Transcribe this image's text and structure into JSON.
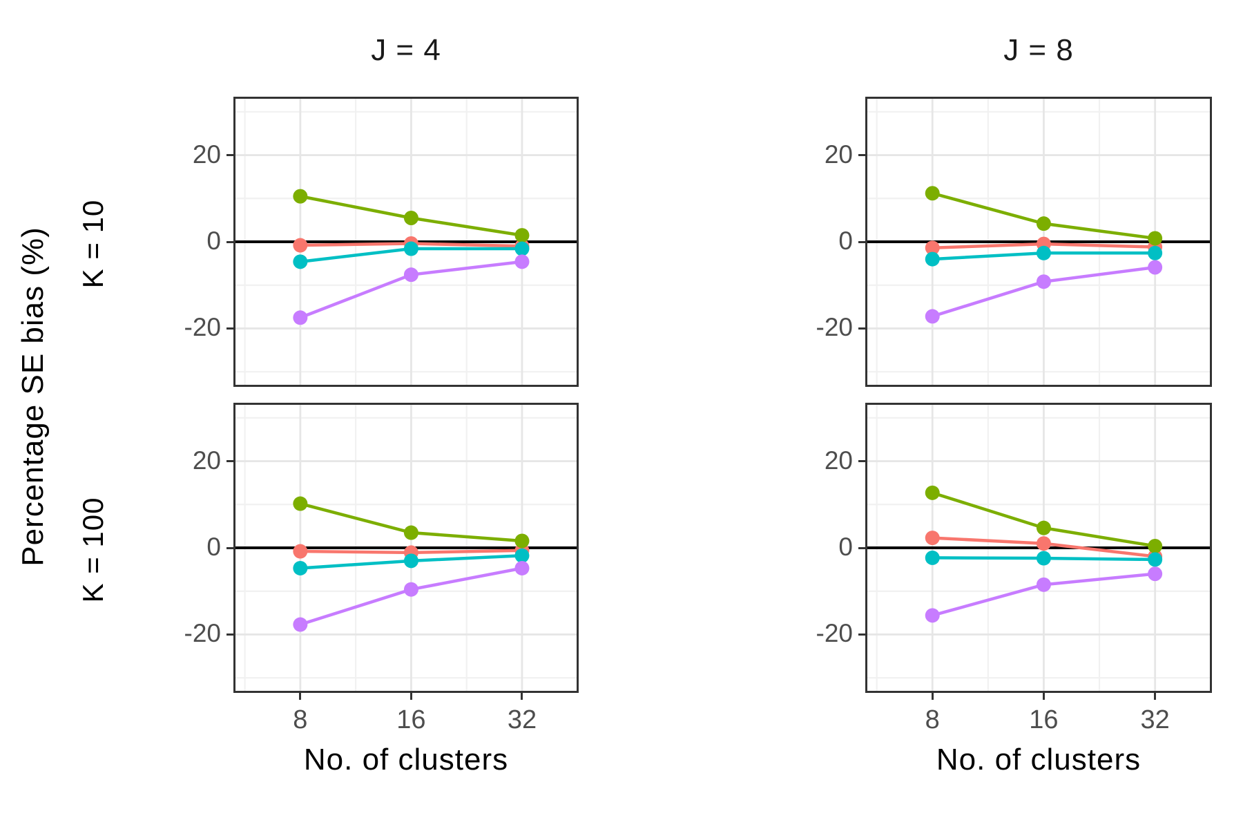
{
  "figure": {
    "ylabel": "Percentage SE bias (%)",
    "xlabel": "No. of clusters",
    "col_facets": [
      "J = 4",
      "J = 8"
    ],
    "row_facets": [
      "K = 10",
      "K = 100"
    ]
  },
  "chart_data": {
    "type": "line",
    "title": "",
    "xlabel": "No. of clusters",
    "ylabel": "Percentage SE bias (%)",
    "x": [
      8,
      16,
      32
    ],
    "x_scale": "log2-equally-spaced",
    "ylim": [
      -33,
      33
    ],
    "y_ticks": [
      20,
      0,
      -20
    ],
    "y_minor_gridlines": [
      30,
      10,
      -10,
      -30
    ],
    "grid": "major and minor, light gray, on white panel",
    "legend": "none",
    "reference_line_y": 0,
    "facet_columns": [
      "J = 4",
      "J = 8"
    ],
    "facet_rows": [
      "K = 10",
      "K = 100"
    ],
    "series_colors": {
      "red": "#F8766D",
      "green": "#7CAE00",
      "teal": "#00BFC4",
      "purple": "#C77CFF"
    },
    "panels": [
      {
        "row": "K = 10",
        "col": "J = 4",
        "series": [
          {
            "name": "red",
            "color": "#F8766D",
            "values": [
              -0.8,
              -0.4,
              -1.0
            ]
          },
          {
            "name": "green",
            "color": "#7CAE00",
            "values": [
              10.5,
              5.5,
              1.5
            ]
          },
          {
            "name": "teal",
            "color": "#00BFC4",
            "values": [
              -4.6,
              -1.6,
              -1.6
            ]
          },
          {
            "name": "purple",
            "color": "#C77CFF",
            "values": [
              -17.5,
              -7.6,
              -4.6
            ]
          }
        ]
      },
      {
        "row": "K = 10",
        "col": "J = 8",
        "series": [
          {
            "name": "red",
            "color": "#F8766D",
            "values": [
              -1.4,
              -0.5,
              -1.2
            ]
          },
          {
            "name": "green",
            "color": "#7CAE00",
            "values": [
              11.2,
              4.2,
              0.8
            ]
          },
          {
            "name": "teal",
            "color": "#00BFC4",
            "values": [
              -4.0,
              -2.6,
              -2.6
            ]
          },
          {
            "name": "purple",
            "color": "#C77CFF",
            "values": [
              -17.2,
              -9.2,
              -5.9
            ]
          }
        ]
      },
      {
        "row": "K = 100",
        "col": "J = 4",
        "series": [
          {
            "name": "red",
            "color": "#F8766D",
            "values": [
              -0.8,
              -1.1,
              -0.6
            ]
          },
          {
            "name": "green",
            "color": "#7CAE00",
            "values": [
              10.2,
              3.5,
              1.6
            ]
          },
          {
            "name": "teal",
            "color": "#00BFC4",
            "values": [
              -4.7,
              -3.0,
              -1.8
            ]
          },
          {
            "name": "purple",
            "color": "#C77CFF",
            "values": [
              -17.7,
              -9.6,
              -4.7
            ]
          }
        ]
      },
      {
        "row": "K = 100",
        "col": "J = 8",
        "series": [
          {
            "name": "red",
            "color": "#F8766D",
            "values": [
              2.3,
              1.0,
              -2.0
            ]
          },
          {
            "name": "green",
            "color": "#7CAE00",
            "values": [
              12.7,
              4.6,
              0.4
            ]
          },
          {
            "name": "teal",
            "color": "#00BFC4",
            "values": [
              -2.3,
              -2.4,
              -2.7
            ]
          },
          {
            "name": "purple",
            "color": "#C77CFF",
            "values": [
              -15.6,
              -8.5,
              -6.0
            ]
          }
        ]
      }
    ]
  }
}
